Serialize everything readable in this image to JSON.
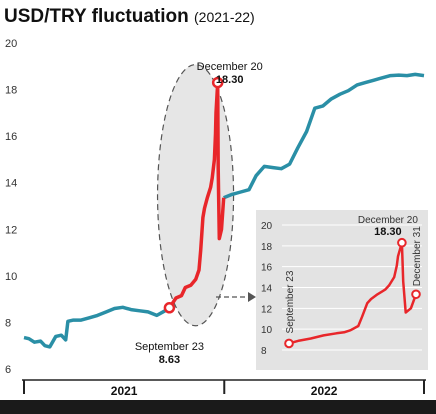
{
  "title": "USD/TRY fluctuation",
  "subtitle": "(2021-22)",
  "colors": {
    "line": "#2a8fa6",
    "highlight": "#e8262a",
    "inset_bg": "#e3e3e3",
    "bottom_bar": "#1a1a1a"
  },
  "chart_data": [
    {
      "type": "line",
      "title": "USD/TRY fluctuation (2021-22)",
      "x_range": [
        "2021-01-01",
        "2022-12-31"
      ],
      "ylim": [
        6,
        20
      ],
      "y_ticks": [
        6,
        8,
        10,
        12,
        14,
        16,
        18,
        20
      ],
      "grid": false,
      "x_groups": [
        "2021",
        "2022"
      ],
      "series": [
        {
          "x": [
            "2021-01-01",
            "2021-01-10",
            "2021-01-20",
            "2021-01-31",
            "2021-02-08",
            "2021-02-17",
            "2021-02-28",
            "2021-03-10",
            "2021-03-18",
            "2021-03-22",
            "2021-04-01",
            "2021-04-15",
            "2021-04-30",
            "2021-05-15",
            "2021-05-31",
            "2021-06-15",
            "2021-06-30",
            "2021-07-15",
            "2021-07-31",
            "2021-08-15",
            "2021-08-31",
            "2021-09-15",
            "2021-09-23",
            "2021-10-05",
            "2021-10-15",
            "2021-10-22",
            "2021-11-01",
            "2021-11-10",
            "2021-11-16",
            "2021-11-19",
            "2021-11-23",
            "2021-11-26",
            "2021-12-01",
            "2021-12-07",
            "2021-12-10",
            "2021-12-14",
            "2021-12-16",
            "2021-12-17",
            "2021-12-20",
            "2021-12-21",
            "2021-12-23",
            "2021-12-27",
            "2021-12-31",
            "2022-01-15",
            "2022-01-31",
            "2022-02-15",
            "2022-02-28",
            "2022-03-15",
            "2022-03-31",
            "2022-04-15",
            "2022-04-30",
            "2022-05-15",
            "2022-05-31",
            "2022-06-15",
            "2022-06-30",
            "2022-07-15",
            "2022-07-31",
            "2022-08-15",
            "2022-08-31",
            "2022-09-15",
            "2022-09-30",
            "2022-10-15",
            "2022-10-31",
            "2022-11-15",
            "2022-11-30",
            "2022-12-15",
            "2022-12-31"
          ],
          "values": [
            7.35,
            7.3,
            7.15,
            7.2,
            7.0,
            6.95,
            7.4,
            7.45,
            7.25,
            8.05,
            8.1,
            8.1,
            8.2,
            8.3,
            8.45,
            8.6,
            8.65,
            8.55,
            8.5,
            8.45,
            8.3,
            8.5,
            8.63,
            9.05,
            9.15,
            9.5,
            9.6,
            9.85,
            10.25,
            11.1,
            12.5,
            12.9,
            13.35,
            13.8,
            14.2,
            15.0,
            16.1,
            17.0,
            18.3,
            14.6,
            11.6,
            12.0,
            13.35,
            13.5,
            13.6,
            13.7,
            14.3,
            14.7,
            14.65,
            14.6,
            14.8,
            15.5,
            16.2,
            17.2,
            17.3,
            17.6,
            17.8,
            17.95,
            18.2,
            18.3,
            18.4,
            18.5,
            18.6,
            18.62,
            18.6,
            18.65,
            18.6
          ],
          "highlight_range": [
            "2021-09-23",
            "2021-12-31"
          ]
        }
      ],
      "annotations": [
        {
          "label": "September 23",
          "value": "8.63"
        },
        {
          "label": "December 20",
          "value": "18.30"
        }
      ]
    },
    {
      "type": "line",
      "title": "",
      "x_range": [
        "2021-09-23",
        "2021-12-31"
      ],
      "ylim": [
        8,
        20
      ],
      "y_ticks": [
        8,
        10,
        12,
        14,
        16,
        18,
        20
      ],
      "grid": true,
      "series": [
        {
          "x": [
            "2021-09-23",
            "2021-10-01",
            "2021-10-10",
            "2021-10-20",
            "2021-10-30",
            "2021-11-05",
            "2021-11-10",
            "2021-11-16",
            "2021-11-19",
            "2021-11-23",
            "2021-11-26",
            "2021-12-01",
            "2021-12-07",
            "2021-12-10",
            "2021-12-14",
            "2021-12-16",
            "2021-12-17",
            "2021-12-20",
            "2021-12-21",
            "2021-12-23",
            "2021-12-27",
            "2021-12-31"
          ],
          "values": [
            8.63,
            8.9,
            9.1,
            9.4,
            9.6,
            9.7,
            9.9,
            10.3,
            11.2,
            12.5,
            12.9,
            13.35,
            13.8,
            14.2,
            15.0,
            16.1,
            17.0,
            18.3,
            14.6,
            11.6,
            12.0,
            13.35
          ]
        }
      ],
      "annotations": [
        {
          "label": "September 23"
        },
        {
          "label": "December 20",
          "value": "18.30"
        },
        {
          "label": "December 31"
        }
      ]
    }
  ]
}
